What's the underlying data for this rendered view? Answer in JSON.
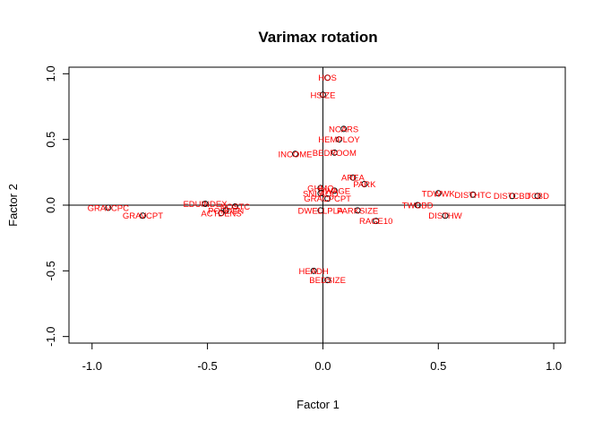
{
  "chart_data": {
    "type": "scatter",
    "title": "Varimax rotation",
    "xlabel": "Factor 1",
    "ylabel": "Factor 2",
    "xlim": [
      -1.1,
      1.05
    ],
    "ylim": [
      -1.05,
      1.05
    ],
    "xticks": [
      -1.0,
      -0.5,
      0.0,
      0.5,
      1.0
    ],
    "xtick_labels": [
      "-1.0",
      "-0.5",
      "0.0",
      "0.5",
      "1.0"
    ],
    "yticks": [
      -1.0,
      -0.5,
      0.0,
      0.5,
      1.0
    ],
    "ytick_labels": [
      "-1.0",
      "-0.5",
      "0.0",
      "0.5",
      "1.0"
    ],
    "reference_lines": {
      "x": 0,
      "y": 0
    },
    "label_color": "#ff0000",
    "point_color": "#000000",
    "points": [
      {
        "label": "HOS",
        "x": 0.02,
        "y": 0.97
      },
      {
        "label": "HSIZE",
        "x": 0.0,
        "y": 0.84
      },
      {
        "label": "NCARS",
        "x": 0.09,
        "y": 0.58
      },
      {
        "label": "HEMPLOY",
        "x": 0.07,
        "y": 0.5
      },
      {
        "label": "INCOME",
        "x": -0.12,
        "y": 0.39
      },
      {
        "label": "BEDROOM",
        "x": 0.05,
        "y": 0.4
      },
      {
        "label": "AREA",
        "x": 0.13,
        "y": 0.21
      },
      {
        "label": "PARK",
        "x": 0.18,
        "y": 0.16
      },
      {
        "label": "DWAGE",
        "x": 0.05,
        "y": 0.11
      },
      {
        "label": "GHMO",
        "x": -0.01,
        "y": 0.13
      },
      {
        "label": "SNLAOO",
        "x": -0.01,
        "y": 0.09
      },
      {
        "label": "GRACPCPT",
        "x": 0.02,
        "y": 0.05
      },
      {
        "label": "TDWWK",
        "x": 0.5,
        "y": 0.09
      },
      {
        "label": "DISTHTC",
        "x": 0.65,
        "y": 0.08
      },
      {
        "label": "DISTCBD",
        "x": 0.82,
        "y": 0.07
      },
      {
        "label": "TCBD",
        "x": 0.93,
        "y": 0.07
      },
      {
        "label": "TWCBD",
        "x": 0.41,
        "y": 0.0
      },
      {
        "label": "DISTHW",
        "x": 0.53,
        "y": -0.08
      },
      {
        "label": "DWELLPLA",
        "x": -0.01,
        "y": -0.04
      },
      {
        "label": "PARKSIZE",
        "x": 0.15,
        "y": -0.04
      },
      {
        "label": "RAGE10",
        "x": 0.23,
        "y": -0.12
      },
      {
        "label": "EDUINDEX",
        "x": -0.51,
        "y": 0.01
      },
      {
        "label": "NOSTC",
        "x": -0.38,
        "y": -0.01
      },
      {
        "label": "POPDEN",
        "x": -0.42,
        "y": -0.04
      },
      {
        "label": "ACTDENS",
        "x": -0.44,
        "y": -0.06
      },
      {
        "label": "GRAVCPC",
        "x": -0.93,
        "y": -0.02
      },
      {
        "label": "GRAVCPT",
        "x": -0.78,
        "y": -0.08
      },
      {
        "label": "HEADH",
        "x": -0.04,
        "y": -0.5
      },
      {
        "label": "BEDSIZE",
        "x": 0.02,
        "y": -0.57
      }
    ]
  }
}
